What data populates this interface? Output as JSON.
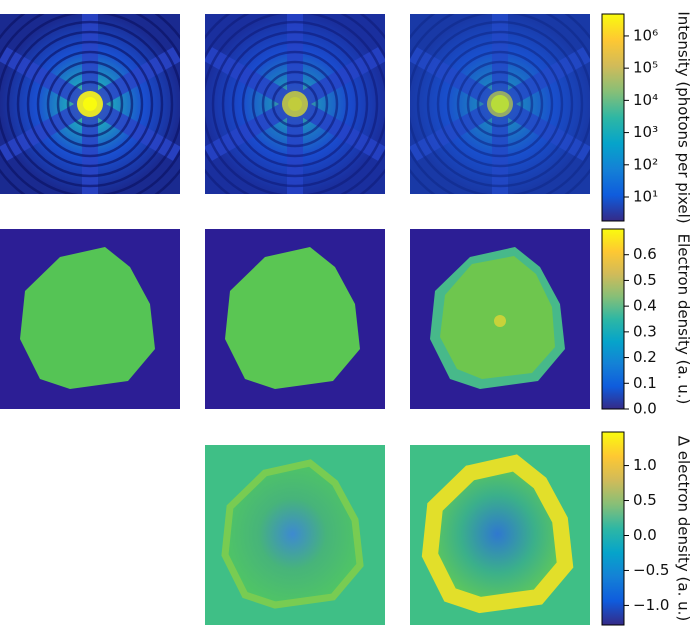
{
  "chart_data": [
    {
      "type": "colorbar",
      "label": "Intensity (photons per pixel)",
      "log": true,
      "clim": [
        1.8,
        4800000
      ],
      "ticks": [
        {
          "value": 10,
          "label": "10¹"
        },
        {
          "value": 100,
          "label": "10²"
        },
        {
          "value": 1000,
          "label": "10³"
        },
        {
          "value": 10000,
          "label": "10⁴"
        },
        {
          "value": 100000,
          "label": "10⁵"
        },
        {
          "value": 1000000,
          "label": "10⁶"
        }
      ],
      "colormap": [
        "#352a87",
        "#0f5cdd",
        "#1481d6",
        "#06a4ca",
        "#2eb7a4",
        "#87bf77",
        "#d1bb59",
        "#fec832",
        "#f9fb0e"
      ]
    },
    {
      "type": "colorbar",
      "label": "Electron density (a. u.)",
      "log": false,
      "clim": [
        0,
        0.7
      ],
      "ticks": [
        {
          "value": 0,
          "label": "0.0"
        },
        {
          "value": 0.1,
          "label": "0.1"
        },
        {
          "value": 0.2,
          "label": "0.2"
        },
        {
          "value": 0.3,
          "label": "0.3"
        },
        {
          "value": 0.4,
          "label": "0.4"
        },
        {
          "value": 0.5,
          "label": "0.5"
        },
        {
          "value": 0.6,
          "label": "0.6"
        }
      ],
      "colormap": [
        "#352a87",
        "#0f5cdd",
        "#1481d6",
        "#06a4ca",
        "#2eb7a4",
        "#87bf77",
        "#d1bb59",
        "#fec832",
        "#f9fb0e"
      ]
    },
    {
      "type": "colorbar",
      "label": "Δ electron density (a. u.)",
      "log": false,
      "clim": [
        -1.28,
        1.48
      ],
      "ticks": [
        {
          "value": -1,
          "label": "−1.0"
        },
        {
          "value": -0.5,
          "label": "−0.5"
        },
        {
          "value": 0,
          "label": "0.0"
        },
        {
          "value": 0.5,
          "label": "0.5"
        },
        {
          "value": 1,
          "label": "1.0"
        }
      ],
      "colormap": [
        "#352a87",
        "#0f5cdd",
        "#1481d6",
        "#06a4ca",
        "#2eb7a4",
        "#87bf77",
        "#d1bb59",
        "#fec832",
        "#f9fb0e"
      ]
    }
  ]
}
